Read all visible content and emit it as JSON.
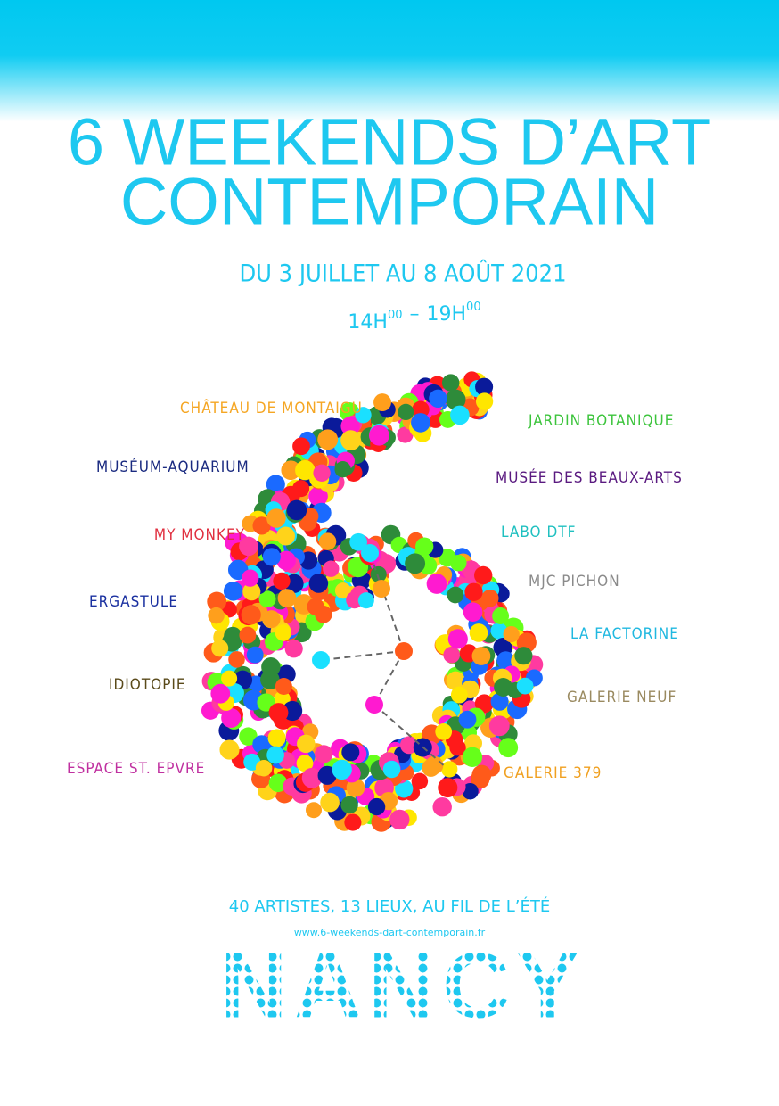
{
  "title": {
    "lines": [
      "6 WEEKENDS D’ART",
      "CONTEMPORAIN"
    ]
  },
  "dates": "DU 3 JUILLET AU 8 AOÛT 2021",
  "hours": [
    {
      "main": "14H",
      "sup": "00"
    },
    {
      "main": "19H",
      "sup": "00"
    }
  ],
  "hours_separator": "–",
  "venues": [
    {
      "name": "CHÂTEAU DE MONTAIGU",
      "color": "#f5a623"
    },
    {
      "name": "JARDIN BOTANIQUE",
      "color": "#3cc43c"
    },
    {
      "name": "MUSÉUM-AQUARIUM",
      "color": "#1a2a80"
    },
    {
      "name": "MUSÉE DES BEAUX-ARTS",
      "color": "#5a1a80"
    },
    {
      "name": "MY MONKEY",
      "color": "#e03040"
    },
    {
      "name": "LABO DTF",
      "color": "#20c0c0"
    },
    {
      "name": "MJC PICHON",
      "color": "#8a8a8a"
    },
    {
      "name": "ERGASTULE",
      "color": "#1a30a0"
    },
    {
      "name": "LA FACTORINE",
      "color": "#20b8e0"
    },
    {
      "name": "IDIOTOPIE",
      "color": "#5a4a1a"
    },
    {
      "name": "GALERIE NEUF",
      "color": "#9a8a60"
    },
    {
      "name": "ESPACE ST. EPVRE",
      "color": "#c030a0"
    },
    {
      "name": "GALERIE 379",
      "color": "#f0a020"
    }
  ],
  "tagline": "40 ARTISTES, 13 LIEUX, AU FIL DE L’ÉTÉ",
  "url": "www.6-weekends-dart-contemporain.fr",
  "city": "NANCY"
}
